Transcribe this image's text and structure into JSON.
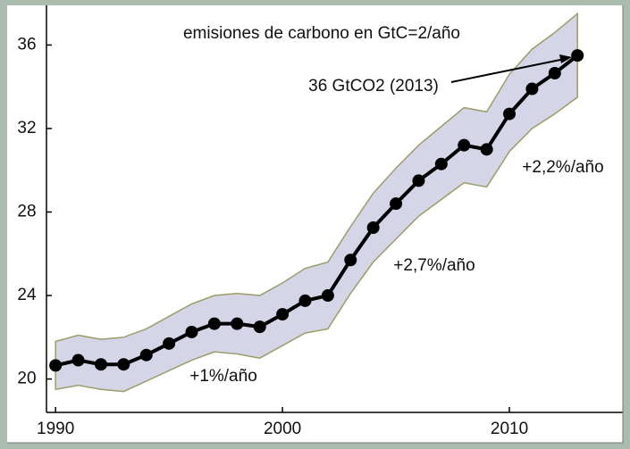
{
  "chart_data": {
    "type": "line",
    "title": "emisiones de carbono en GtC=2/año",
    "x": [
      1990,
      1991,
      1992,
      1993,
      1994,
      1995,
      1996,
      1997,
      1998,
      1999,
      2000,
      2001,
      2002,
      2003,
      2004,
      2005,
      2006,
      2007,
      2008,
      2009,
      2010,
      2011,
      2012,
      2013
    ],
    "series": [
      {
        "color": "#000000",
        "values": [
          20.65,
          20.9,
          20.7,
          20.7,
          21.15,
          21.7,
          22.25,
          22.65,
          22.65,
          22.5,
          23.1,
          23.75,
          24.0,
          25.7,
          27.25,
          28.4,
          29.5,
          30.3,
          31.2,
          31.0,
          32.7,
          33.9,
          34.65,
          35.5
        ]
      }
    ],
    "band": {
      "color": "#d5d5e8",
      "edge": "#9c9c6a",
      "upper": [
        21.8,
        22.1,
        21.9,
        22.0,
        22.4,
        23.0,
        23.6,
        24.0,
        24.1,
        24.0,
        24.6,
        25.3,
        25.6,
        27.3,
        28.9,
        30.1,
        31.2,
        32.1,
        33.0,
        32.8,
        34.6,
        35.8,
        36.6,
        37.5
      ],
      "lower": [
        19.5,
        19.7,
        19.5,
        19.4,
        19.9,
        20.4,
        20.9,
        21.3,
        21.2,
        21.0,
        21.6,
        22.2,
        22.4,
        24.1,
        25.6,
        26.7,
        27.8,
        28.6,
        29.4,
        29.2,
        30.9,
        32.0,
        32.7,
        33.5
      ]
    },
    "xlim": [
      1989.6,
      2015.0
    ],
    "ylim": [
      18.4,
      37.9
    ],
    "xticks": [
      1990,
      2000,
      2010
    ],
    "yticks": [
      20,
      24,
      28,
      32,
      36
    ],
    "annotations": [
      "36 GtCO2 (2013)",
      "+2,2%/año",
      "+2,7%/año",
      "+1%/año"
    ]
  }
}
